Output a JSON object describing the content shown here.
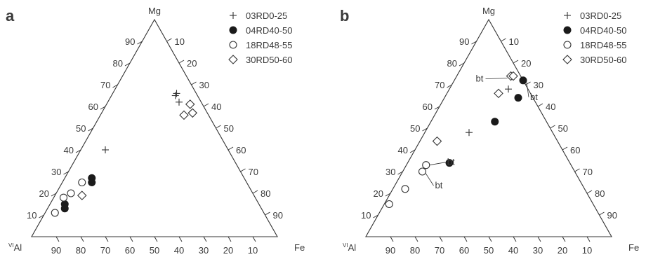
{
  "colors": {
    "ink": "#333333",
    "filled_marker": "#1a1a1a",
    "open_marker_fill": "#ffffff"
  },
  "figure": {
    "panels": [
      {
        "label": "a",
        "apex_labels": {
          "top": "Mg",
          "left_sup": "VI",
          "left": "Al",
          "right": "Fe"
        },
        "tick_values": [
          10,
          20,
          30,
          40,
          50,
          60,
          70,
          80,
          90
        ],
        "legend": [
          {
            "label": "03RD0-25",
            "marker": "plus"
          },
          {
            "label": "04RD40-50",
            "marker": "filled-circle"
          },
          {
            "label": "18RD48-55",
            "marker": "open-circle"
          },
          {
            "label": "30RD50-60",
            "marker": "diamond"
          }
        ]
      },
      {
        "label": "b",
        "apex_labels": {
          "top": "Mg",
          "left_sup": "VI",
          "left": "Al",
          "right": "Fe"
        },
        "tick_values": [
          10,
          20,
          30,
          40,
          50,
          60,
          70,
          80,
          90
        ],
        "legend": [
          {
            "label": "03RD0-25",
            "marker": "plus"
          },
          {
            "label": "04RD40-50",
            "marker": "filled-circle"
          },
          {
            "label": "18RD48-55",
            "marker": "open-circle"
          },
          {
            "label": "30RD50-60",
            "marker": "diamond"
          }
        ],
        "annotations": [
          "bt",
          "bt",
          "bt",
          "bt"
        ]
      }
    ]
  },
  "chart_data": [
    {
      "type": "scatter",
      "coordinates": "ternary (Mg, Fe, VIAl) in percent",
      "series": [
        {
          "name": "03RD0-25",
          "marker": "plus",
          "points": [
            {
              "mg": 66,
              "fe": 26,
              "al": 8
            },
            {
              "mg": 65,
              "fe": 26,
              "al": 9
            },
            {
              "mg": 62,
              "fe": 29,
              "al": 9
            },
            {
              "mg": 40,
              "fe": 10,
              "al": 50
            }
          ]
        },
        {
          "name": "04RD40-50",
          "marker": "filled-circle",
          "points": [
            {
              "mg": 27,
              "fe": 11,
              "al": 62
            },
            {
              "mg": 25,
              "fe": 12,
              "al": 63
            },
            {
              "mg": 15,
              "fe": 6,
              "al": 79
            },
            {
              "mg": 13,
              "fe": 7,
              "al": 80
            }
          ]
        },
        {
          "name": "18RD48-55",
          "marker": "open-circle",
          "points": [
            {
              "mg": 25,
              "fe": 8,
              "al": 67
            },
            {
              "mg": 20,
              "fe": 6,
              "al": 74
            },
            {
              "mg": 18,
              "fe": 4,
              "al": 78
            },
            {
              "mg": 11,
              "fe": 4,
              "al": 85
            }
          ]
        },
        {
          "name": "30RD50-60",
          "marker": "diamond",
          "points": [
            {
              "mg": 61,
              "fe": 34,
              "al": 5
            },
            {
              "mg": 57,
              "fe": 37,
              "al": 6
            },
            {
              "mg": 56,
              "fe": 34,
              "al": 10
            },
            {
              "mg": 19,
              "fe": 11,
              "al": 70
            }
          ]
        }
      ]
    },
    {
      "type": "scatter",
      "coordinates": "ternary (Mg, Fe, VIAl) in percent",
      "series": [
        {
          "name": "03RD0-25",
          "marker": "plus",
          "points": [
            {
              "mg": 68,
              "fe": 24,
              "al": 8
            },
            {
              "mg": 48,
              "fe": 18,
              "al": 34
            }
          ]
        },
        {
          "name": "04RD40-50",
          "marker": "filled-circle",
          "points": [
            {
              "mg": 72,
              "fe": 28,
              "al": 0
            },
            {
              "mg": 64,
              "fe": 30,
              "al": 6
            },
            {
              "mg": 53,
              "fe": 26,
              "al": 21
            },
            {
              "mg": 34,
              "fe": 17,
              "al": 49
            }
          ]
        },
        {
          "name": "18RD48-55",
          "marker": "open-circle",
          "points": [
            {
              "mg": 33,
              "fe": 8,
              "al": 59
            },
            {
              "mg": 30,
              "fe": 8,
              "al": 62
            },
            {
              "mg": 22,
              "fe": 5,
              "al": 73
            },
            {
              "mg": 15,
              "fe": 2,
              "al": 83
            }
          ]
        },
        {
          "name": "30RD50-60",
          "marker": "diamond",
          "points": [
            {
              "mg": 74,
              "fe": 22,
              "al": 4
            },
            {
              "mg": 74,
              "fe": 23,
              "al": 3
            },
            {
              "mg": 66,
              "fe": 21,
              "al": 13
            },
            {
              "mg": 44,
              "fe": 7,
              "al": 49
            }
          ]
        }
      ],
      "annotations": [
        {
          "text": "bt",
          "target": {
            "mg": 74,
            "fe": 22,
            "al": 4
          }
        },
        {
          "text": "bt",
          "target": {
            "mg": 72,
            "fe": 28,
            "al": 0
          }
        },
        {
          "text": "bt",
          "target": {
            "mg": 33,
            "fe": 8,
            "al": 59
          }
        },
        {
          "text": "bt",
          "target": {
            "mg": 30,
            "fe": 8,
            "al": 62
          }
        }
      ]
    }
  ]
}
